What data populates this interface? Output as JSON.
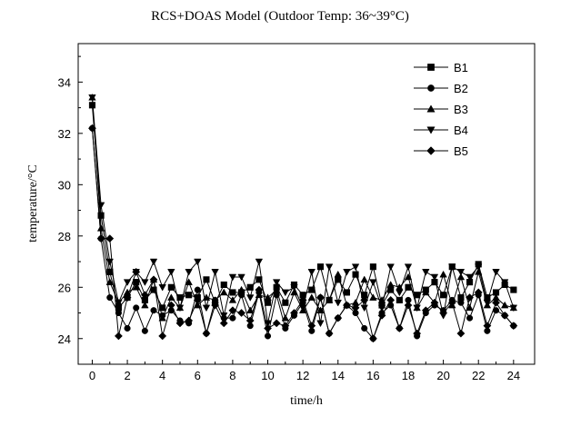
{
  "chart_data": {
    "type": "line",
    "title": "RCS+DOAS Model (Outdoor Temp: 36~39°C)",
    "xlabel": "time/h",
    "ylabel": "temperature/°C",
    "xlim": [
      -0.8,
      25.2
    ],
    "ylim": [
      23.0,
      35.5
    ],
    "xticks": [
      0,
      2,
      4,
      6,
      8,
      10,
      12,
      14,
      16,
      18,
      20,
      22,
      24
    ],
    "yticks": [
      24,
      26,
      28,
      30,
      32,
      34
    ],
    "grid": false,
    "legend_position": "top-right",
    "x": [
      0,
      0.5,
      1,
      1.5,
      2,
      2.5,
      3,
      3.5,
      4,
      4.5,
      5,
      5.5,
      6,
      6.5,
      7,
      7.5,
      8,
      8.5,
      9,
      9.5,
      10,
      10.5,
      11,
      11.5,
      12,
      12.5,
      13,
      13.5,
      14,
      14.5,
      15,
      15.5,
      16,
      16.5,
      17,
      17.5,
      18,
      18.5,
      19,
      19.5,
      20,
      20.5,
      21,
      21.5,
      22,
      22.5,
      23,
      23.5,
      24
    ],
    "series": [
      {
        "name": "B1",
        "marker": "square",
        "values": [
          33.1,
          28.8,
          26.6,
          25.2,
          25.6,
          26.2,
          25.5,
          25.9,
          25.2,
          26.0,
          25.6,
          25.7,
          25.6,
          26.3,
          25.4,
          26.1,
          25.8,
          25.8,
          26.0,
          26.3,
          25.4,
          26.0,
          25.4,
          26.1,
          25.7,
          25.9,
          26.8,
          25.5,
          26.3,
          25.8,
          26.5,
          25.7,
          26.8,
          25.3,
          25.9,
          25.5,
          26.0,
          25.7,
          25.9,
          26.2,
          25.7,
          26.8,
          25.6,
          26.2,
          26.9,
          25.6,
          25.8,
          26.1,
          25.9
        ]
      },
      {
        "name": "B2",
        "marker": "circle",
        "values": [
          32.2,
          27.9,
          25.6,
          25.0,
          24.4,
          25.2,
          24.3,
          25.1,
          24.9,
          25.1,
          24.7,
          24.6,
          25.9,
          24.2,
          25.5,
          24.8,
          24.8,
          25.7,
          24.5,
          25.8,
          24.1,
          25.7,
          24.4,
          24.9,
          25.4,
          24.3,
          25.6,
          24.2,
          24.8,
          25.3,
          25.0,
          24.4,
          24.0,
          25.0,
          25.3,
          24.4,
          25.5,
          24.1,
          25.0,
          25.3,
          25.1,
          25.5,
          25.4,
          24.8,
          25.7,
          24.3,
          25.1,
          24.9,
          24.5
        ]
      },
      {
        "name": "B3",
        "marker": "triangle-up",
        "values": [
          33.4,
          28.3,
          26.2,
          25.4,
          25.8,
          26.0,
          25.3,
          26.3,
          24.8,
          25.6,
          25.2,
          26.2,
          25.3,
          25.6,
          25.5,
          25.8,
          25.5,
          25.9,
          25.1,
          25.7,
          25.6,
          25.9,
          24.8,
          25.8,
          25.1,
          25.6,
          25.1,
          25.5,
          26.5,
          25.3,
          25.4,
          26.3,
          25.6,
          25.5,
          26.1,
          26.0,
          26.4,
          25.2,
          25.8,
          25.4,
          26.5,
          25.3,
          26.4,
          25.2,
          26.6,
          25.3,
          25.6,
          25.3,
          25.2
        ]
      },
      {
        "name": "B4",
        "marker": "triangle-down",
        "values": [
          33.4,
          29.2,
          27.0,
          25.4,
          26.2,
          26.6,
          26.2,
          27.0,
          26.0,
          26.6,
          25.2,
          26.6,
          27.0,
          25.2,
          26.6,
          24.9,
          26.4,
          26.4,
          25.6,
          27.0,
          24.6,
          26.2,
          25.8,
          26.0,
          25.2,
          26.6,
          24.6,
          26.8,
          25.4,
          26.6,
          26.8,
          25.2,
          26.2,
          25.2,
          26.8,
          25.8,
          26.8,
          25.2,
          26.6,
          26.4,
          24.9,
          26.8,
          26.6,
          26.4,
          26.8,
          25.4,
          26.6,
          26.2,
          25.2
        ]
      },
      {
        "name": "B5",
        "marker": "diamond",
        "values": [
          32.2,
          27.9,
          27.9,
          24.1,
          25.6,
          26.6,
          25.7,
          26.3,
          24.1,
          25.3,
          24.6,
          24.7,
          25.5,
          24.2,
          25.3,
          24.6,
          25.1,
          25.0,
          24.7,
          25.9,
          24.4,
          24.6,
          24.5,
          25.0,
          25.5,
          24.5,
          25.6,
          24.2,
          24.8,
          25.3,
          25.2,
          25.5,
          24.0,
          24.9,
          25.5,
          24.4,
          25.3,
          24.2,
          25.1,
          25.4,
          25.0,
          25.4,
          24.2,
          25.6,
          25.8,
          24.5,
          25.4,
          24.9,
          24.5
        ]
      }
    ]
  }
}
